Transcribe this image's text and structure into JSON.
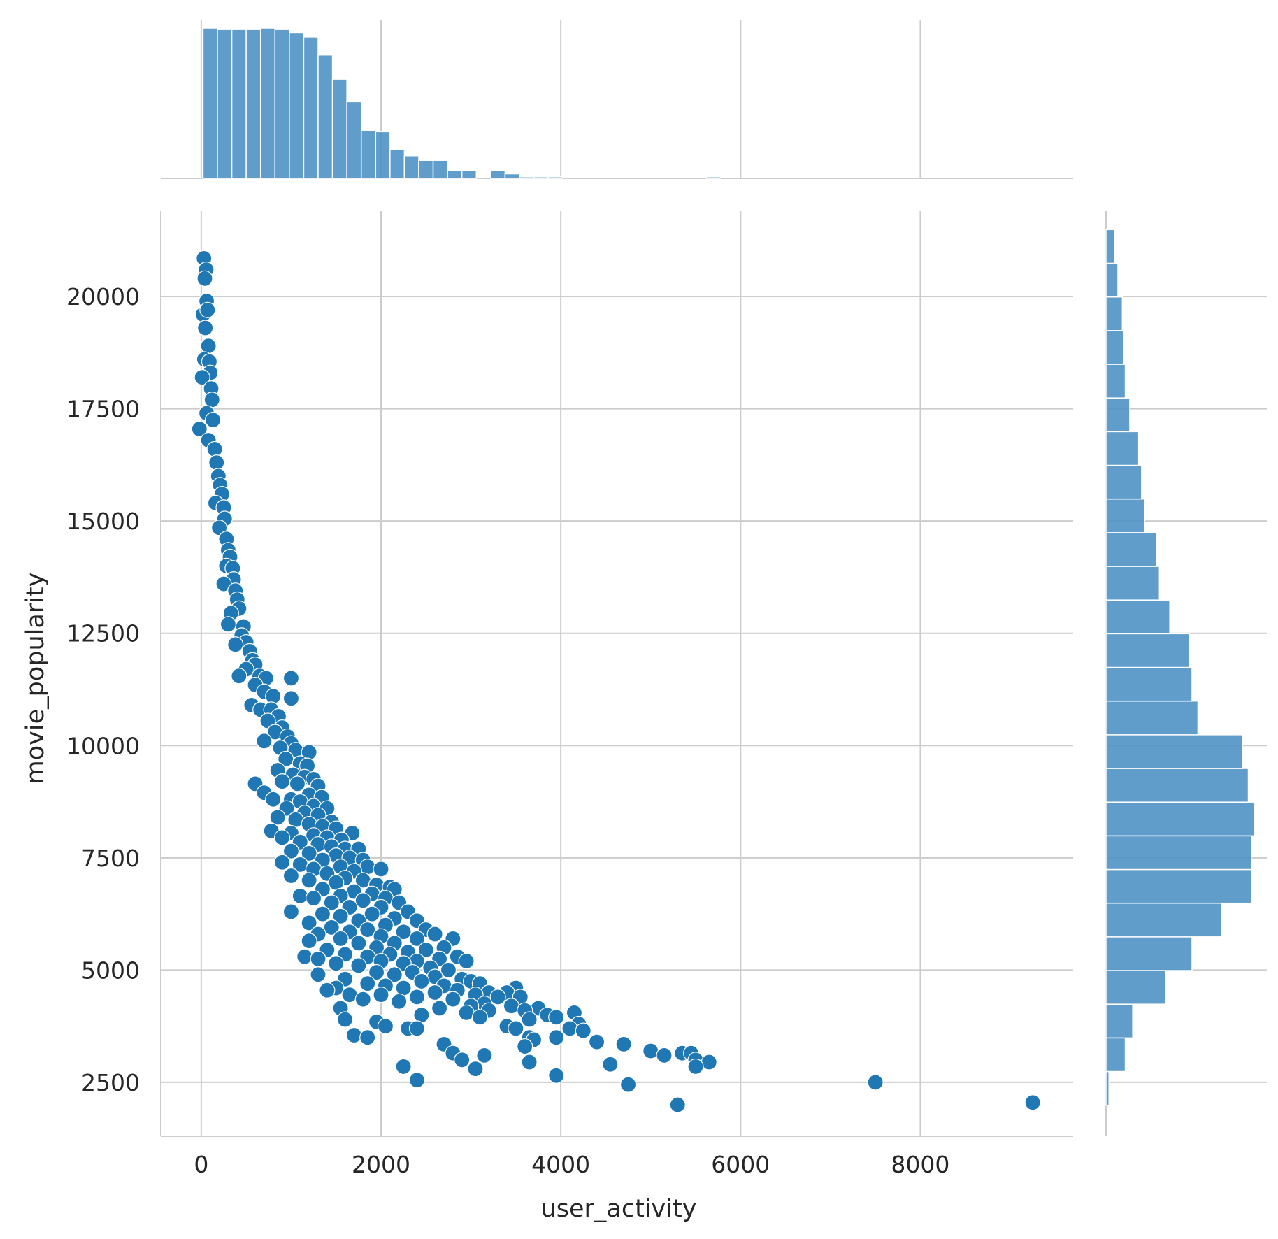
{
  "chart_data": {
    "type": "scatter",
    "xlabel": "user_activity",
    "ylabel": "movie_popularity",
    "xlim": [
      -450,
      9700
    ],
    "ylim": [
      1300,
      21900
    ],
    "xticks": [
      0,
      2000,
      4000,
      6000,
      8000
    ],
    "yticks": [
      2500,
      5000,
      7500,
      10000,
      12500,
      15000,
      17500,
      20000
    ],
    "grid": true,
    "legend": "none",
    "colors": {
      "points": "#1f77b4",
      "bars": "#4a90c4",
      "grid": "#cccccc"
    },
    "points": [
      [
        30,
        20850
      ],
      [
        55,
        20600
      ],
      [
        40,
        20400
      ],
      [
        60,
        19900
      ],
      [
        20,
        19600
      ],
      [
        70,
        19700
      ],
      [
        45,
        19300
      ],
      [
        80,
        18900
      ],
      [
        35,
        18600
      ],
      [
        90,
        18550
      ],
      [
        100,
        18300
      ],
      [
        10,
        18200
      ],
      [
        110,
        17950
      ],
      [
        120,
        17700
      ],
      [
        60,
        17400
      ],
      [
        130,
        17250
      ],
      [
        -20,
        17050
      ],
      [
        80,
        16800
      ],
      [
        150,
        16600
      ],
      [
        170,
        16300
      ],
      [
        190,
        16000
      ],
      [
        210,
        15800
      ],
      [
        230,
        15600
      ],
      [
        160,
        15400
      ],
      [
        250,
        15300
      ],
      [
        260,
        15050
      ],
      [
        200,
        14850
      ],
      [
        280,
        14600
      ],
      [
        300,
        14350
      ],
      [
        320,
        14200
      ],
      [
        280,
        14000
      ],
      [
        350,
        13950
      ],
      [
        360,
        13700
      ],
      [
        250,
        13600
      ],
      [
        380,
        13450
      ],
      [
        400,
        13250
      ],
      [
        420,
        13050
      ],
      [
        330,
        12950
      ],
      [
        300,
        12700
      ],
      [
        470,
        12650
      ],
      [
        450,
        12450
      ],
      [
        500,
        12300
      ],
      [
        380,
        12250
      ],
      [
        540,
        12100
      ],
      [
        570,
        11900
      ],
      [
        600,
        11800
      ],
      [
        500,
        11700
      ],
      [
        420,
        11550
      ],
      [
        650,
        11550
      ],
      [
        720,
        11500
      ],
      [
        1000,
        11500
      ],
      [
        600,
        11350
      ],
      [
        700,
        11200
      ],
      [
        800,
        11100
      ],
      [
        1000,
        11050
      ],
      [
        560,
        10900
      ],
      [
        660,
        10800
      ],
      [
        780,
        10800
      ],
      [
        860,
        10650
      ],
      [
        740,
        10550
      ],
      [
        900,
        10400
      ],
      [
        820,
        10300
      ],
      [
        960,
        10200
      ],
      [
        700,
        10100
      ],
      [
        1000,
        10050
      ],
      [
        880,
        9950
      ],
      [
        1050,
        9900
      ],
      [
        1200,
        9850
      ],
      [
        940,
        9700
      ],
      [
        1100,
        9600
      ],
      [
        1180,
        9550
      ],
      [
        850,
        9450
      ],
      [
        1020,
        9350
      ],
      [
        1150,
        9300
      ],
      [
        1250,
        9250
      ],
      [
        900,
        9200
      ],
      [
        1070,
        9150
      ],
      [
        600,
        9150
      ],
      [
        1300,
        9100
      ],
      [
        700,
        8950
      ],
      [
        1200,
        8900
      ],
      [
        1340,
        8850
      ],
      [
        800,
        8800
      ],
      [
        1000,
        8800
      ],
      [
        1100,
        8750
      ],
      [
        1250,
        8650
      ],
      [
        1400,
        8600
      ],
      [
        950,
        8600
      ],
      [
        1150,
        8500
      ],
      [
        1300,
        8450
      ],
      [
        850,
        8400
      ],
      [
        1050,
        8350
      ],
      [
        1450,
        8300
      ],
      [
        1200,
        8250
      ],
      [
        1350,
        8200
      ],
      [
        1500,
        8150
      ],
      [
        780,
        8100
      ],
      [
        1000,
        8050
      ],
      [
        1680,
        8050
      ],
      [
        1250,
        8000
      ],
      [
        1400,
        7950
      ],
      [
        900,
        7950
      ],
      [
        1560,
        7900
      ],
      [
        1100,
        7850
      ],
      [
        1300,
        7800
      ],
      [
        1450,
        7750
      ],
      [
        1600,
        7700
      ],
      [
        1750,
        7700
      ],
      [
        1000,
        7650
      ],
      [
        1200,
        7600
      ],
      [
        1500,
        7550
      ],
      [
        1650,
        7500
      ],
      [
        1800,
        7450
      ],
      [
        1350,
        7450
      ],
      [
        900,
        7400
      ],
      [
        1100,
        7350
      ],
      [
        1550,
        7300
      ],
      [
        1850,
        7300
      ],
      [
        2000,
        7250
      ],
      [
        1250,
        7250
      ],
      [
        1700,
        7200
      ],
      [
        1400,
        7150
      ],
      [
        1000,
        7100
      ],
      [
        1600,
        7050
      ],
      [
        1800,
        7000
      ],
      [
        1200,
        7000
      ],
      [
        1500,
        6950
      ],
      [
        1950,
        6900
      ],
      [
        2100,
        6850
      ],
      [
        2150,
        6800
      ],
      [
        1350,
        6800
      ],
      [
        1700,
        6750
      ],
      [
        1900,
        6700
      ],
      [
        1100,
        6650
      ],
      [
        1550,
        6650
      ],
      [
        2050,
        6600
      ],
      [
        1250,
        6600
      ],
      [
        1800,
        6550
      ],
      [
        2200,
        6500
      ],
      [
        1450,
        6500
      ],
      [
        1650,
        6400
      ],
      [
        2000,
        6400
      ],
      [
        1000,
        6300
      ],
      [
        2300,
        6300
      ],
      [
        1900,
        6250
      ],
      [
        1350,
        6250
      ],
      [
        1550,
        6200
      ],
      [
        2150,
        6150
      ],
      [
        2400,
        6100
      ],
      [
        1750,
        6100
      ],
      [
        1200,
        6050
      ],
      [
        2050,
        6000
      ],
      [
        1450,
        5950
      ],
      [
        2500,
        5900
      ],
      [
        1850,
        5900
      ],
      [
        2250,
        5850
      ],
      [
        1650,
        5850
      ],
      [
        1300,
        5800
      ],
      [
        2600,
        5800
      ],
      [
        2000,
        5750
      ],
      [
        1550,
        5700
      ],
      [
        2400,
        5700
      ],
      [
        2800,
        5700
      ],
      [
        1200,
        5650
      ],
      [
        2150,
        5600
      ],
      [
        1750,
        5600
      ],
      [
        2700,
        5500
      ],
      [
        1950,
        5500
      ],
      [
        1400,
        5450
      ],
      [
        2500,
        5450
      ],
      [
        2300,
        5400
      ],
      [
        1600,
        5350
      ],
      [
        2100,
        5350
      ],
      [
        1150,
        5300
      ],
      [
        2850,
        5300
      ],
      [
        1850,
        5300
      ],
      [
        1300,
        5250
      ],
      [
        2650,
        5250
      ],
      [
        2400,
        5200
      ],
      [
        2000,
        5200
      ],
      [
        2950,
        5200
      ],
      [
        1500,
        5150
      ],
      [
        2250,
        5150
      ],
      [
        1750,
        5100
      ],
      [
        2550,
        5050
      ],
      [
        2750,
        5000
      ],
      [
        1950,
        4950
      ],
      [
        2350,
        4950
      ],
      [
        1300,
        4900
      ],
      [
        2150,
        4900
      ],
      [
        2600,
        4850
      ],
      [
        2900,
        4800
      ],
      [
        1600,
        4800
      ],
      [
        3000,
        4750
      ],
      [
        2450,
        4750
      ],
      [
        1850,
        4700
      ],
      [
        3100,
        4700
      ],
      [
        2700,
        4650
      ],
      [
        2050,
        4650
      ],
      [
        1500,
        4600
      ],
      [
        2250,
        4600
      ],
      [
        3500,
        4600
      ],
      [
        2850,
        4550
      ],
      [
        1400,
        4550
      ],
      [
        3200,
        4500
      ],
      [
        2600,
        4500
      ],
      [
        3400,
        4500
      ],
      [
        2000,
        4450
      ],
      [
        1650,
        4450
      ],
      [
        3050,
        4450
      ],
      [
        3300,
        4400
      ],
      [
        3550,
        4400
      ],
      [
        2400,
        4400
      ],
      [
        1800,
        4350
      ],
      [
        2800,
        4350
      ],
      [
        2200,
        4300
      ],
      [
        3150,
        4250
      ],
      [
        3450,
        4200
      ],
      [
        3000,
        4200
      ],
      [
        2650,
        4150
      ],
      [
        1550,
        4150
      ],
      [
        3750,
        4150
      ],
      [
        3200,
        4100
      ],
      [
        3600,
        4100
      ],
      [
        2950,
        4050
      ],
      [
        4150,
        4050
      ],
      [
        3850,
        4000
      ],
      [
        2450,
        4000
      ],
      [
        3950,
        3950
      ],
      [
        3100,
        3950
      ],
      [
        1600,
        3900
      ],
      [
        3650,
        3900
      ],
      [
        1950,
        3850
      ],
      [
        4200,
        3800
      ],
      [
        2050,
        3750
      ],
      [
        3400,
        3750
      ],
      [
        2300,
        3700
      ],
      [
        2400,
        3700
      ],
      [
        3500,
        3700
      ],
      [
        4100,
        3700
      ],
      [
        4250,
        3650
      ],
      [
        3650,
        3500
      ],
      [
        1700,
        3550
      ],
      [
        1850,
        3500
      ],
      [
        3950,
        3500
      ],
      [
        3700,
        3450
      ],
      [
        4400,
        3400
      ],
      [
        4700,
        3350
      ],
      [
        2700,
        3350
      ],
      [
        3600,
        3300
      ],
      [
        2800,
        3150
      ],
      [
        5000,
        3200
      ],
      [
        5150,
        3100
      ],
      [
        5350,
        3150
      ],
      [
        5450,
        3150
      ],
      [
        5500,
        3000
      ],
      [
        5650,
        2950
      ],
      [
        2900,
        3000
      ],
      [
        3150,
        3100
      ],
      [
        3650,
        2950
      ],
      [
        4550,
        2900
      ],
      [
        5500,
        2850
      ],
      [
        2250,
        2850
      ],
      [
        3050,
        2800
      ],
      [
        3950,
        2650
      ],
      [
        2400,
        2550
      ],
      [
        7500,
        2500
      ],
      [
        4750,
        2450
      ],
      [
        5300,
        2000
      ],
      [
        9250,
        2050
      ]
    ],
    "top_hist": {
      "bin_width": 160,
      "start": 20,
      "values": [
        1.0,
        0.99,
        0.99,
        0.99,
        1.0,
        0.99,
        0.97,
        0.94,
        0.82,
        0.66,
        0.51,
        0.32,
        0.31,
        0.19,
        0.15,
        0.12,
        0.12,
        0.05,
        0.05,
        0,
        0.05,
        0.03,
        0.01,
        0.01,
        0.01,
        0,
        0,
        0,
        0,
        0,
        0,
        0,
        0,
        0,
        0,
        0.01
      ]
    },
    "right_hist": {
      "bin_width": 750,
      "start": 1990,
      "values": [
        0.02,
        0.13,
        0.18,
        0.4,
        0.58,
        0.78,
        0.98,
        0.98,
        1.0,
        0.96,
        0.92,
        0.62,
        0.58,
        0.56,
        0.43,
        0.36,
        0.34,
        0.26,
        0.24,
        0.22,
        0.16,
        0.13,
        0.12,
        0.11,
        0.08,
        0.06
      ]
    }
  }
}
